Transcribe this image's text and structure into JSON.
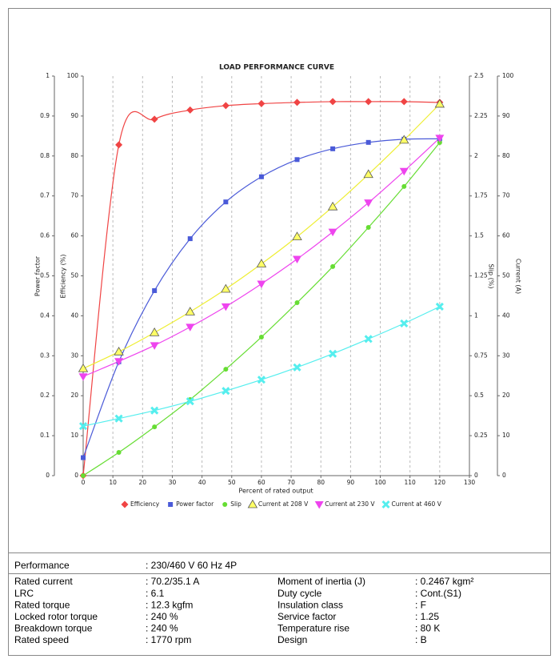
{
  "chart_data": {
    "type": "line",
    "title": "LOAD PERFORMANCE CURVE",
    "xlabel": "Percent of rated output",
    "ylabel": "Power factor",
    "y2label": "Efficiency (%)",
    "y3label": "Slip (%)",
    "y4label": "Current (A)",
    "x": [
      0,
      12,
      24,
      36,
      48,
      60,
      72,
      84,
      96,
      108,
      120
    ],
    "xlim": [
      0,
      130
    ],
    "xticks": [
      0,
      10,
      20,
      30,
      40,
      50,
      60,
      70,
      80,
      90,
      100,
      110,
      120,
      130
    ],
    "ylim": [
      0,
      1
    ],
    "yticks": [
      0,
      0.1,
      0.2,
      0.3,
      0.4,
      0.5,
      0.6,
      0.7,
      0.8,
      0.9,
      1
    ],
    "y2lim": [
      0,
      100
    ],
    "y2ticks": [
      0,
      10,
      20,
      30,
      40,
      50,
      60,
      70,
      80,
      90,
      100
    ],
    "y3lim": [
      0,
      2.5
    ],
    "y3ticks": [
      0,
      0.25,
      0.5,
      0.75,
      1,
      1.25,
      1.5,
      1.75,
      2,
      2.25,
      2.5
    ],
    "y4lim": [
      0,
      100
    ],
    "y4ticks": [
      0,
      10,
      20,
      30,
      40,
      50,
      60,
      70,
      80,
      90,
      100
    ],
    "grid": true,
    "series": [
      {
        "name": "Efficiency",
        "color": "#f04444",
        "marker": "diamond",
        "axis": "y2",
        "values": [
          0,
          82.8,
          89.2,
          91.5,
          92.6,
          93.1,
          93.4,
          93.6,
          93.6,
          93.6,
          93.4
        ]
      },
      {
        "name": "Power factor",
        "color": "#4a5ad8",
        "marker": "square",
        "axis": "y",
        "values": [
          0.045,
          0.285,
          0.463,
          0.593,
          0.685,
          0.748,
          0.791,
          0.818,
          0.834,
          0.842,
          0.843
        ]
      },
      {
        "name": "Slip",
        "color": "#66dd33",
        "marker": "circle",
        "axis": "y3",
        "values": [
          0,
          0.145,
          0.305,
          0.476,
          0.666,
          0.867,
          1.082,
          1.308,
          1.553,
          1.809,
          2.084
        ]
      },
      {
        "name": "Current at 208 V",
        "color": "#ffff66",
        "marker": "triangle-up",
        "axis": "y4",
        "values": [
          26.8,
          31.0,
          35.8,
          41.0,
          46.7,
          53.0,
          59.8,
          67.3,
          75.4,
          84.0,
          93.0
        ]
      },
      {
        "name": "Current at 230 V",
        "color": "#ee44ee",
        "marker": "triangle-down",
        "axis": "y4",
        "values": [
          24.8,
          28.6,
          32.6,
          37.2,
          42.3,
          48.0,
          54.2,
          61.0,
          68.3,
          76.2,
          84.5
        ]
      },
      {
        "name": "Current at 460 V",
        "color": "#55eeee",
        "marker": "x",
        "axis": "y4",
        "values": [
          12.4,
          14.3,
          16.3,
          18.6,
          21.2,
          24.0,
          27.1,
          30.5,
          34.2,
          38.1,
          42.3
        ]
      }
    ]
  },
  "table": {
    "header": [
      "Performance",
      ": 230/460 V 60 Hz 4P"
    ],
    "rows": [
      [
        "Rated current",
        ": 70.2/35.1 A",
        "Moment of inertia (J)",
        ": 0.2467 kgm²"
      ],
      [
        "LRC",
        ": 6.1",
        "Duty cycle",
        ": Cont.(S1)"
      ],
      [
        "Rated torque",
        ": 12.3 kgfm",
        "Insulation class",
        ": F"
      ],
      [
        "Locked rotor torque",
        ": 240 %",
        "Service factor",
        ": 1.25"
      ],
      [
        "Breakdown torque",
        ": 240 %",
        "Temperature rise",
        ": 80 K"
      ],
      [
        "Rated speed",
        ": 1770 rpm",
        "Design",
        ": B"
      ]
    ]
  }
}
